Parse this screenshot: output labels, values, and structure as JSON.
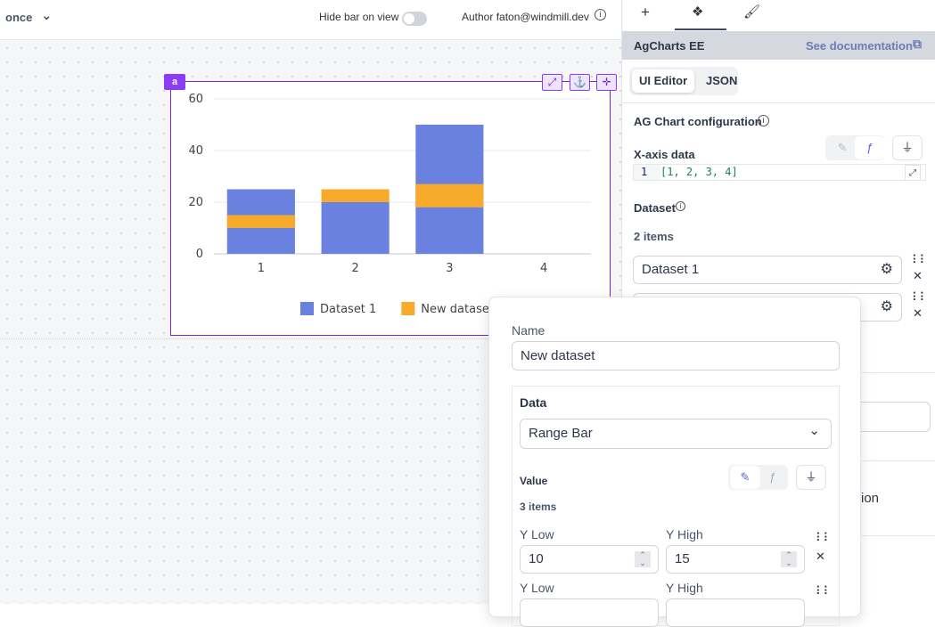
{
  "topbar": {
    "mode": "once",
    "hide_bar_label": "Hide bar on view",
    "hide_bar_on": false,
    "author": "Author faton@windmill.dev"
  },
  "component": {
    "id": "a"
  },
  "chart_data": {
    "type": "bar",
    "categories": [
      "1",
      "2",
      "3",
      "4"
    ],
    "yticks": [
      "0",
      "20",
      "40",
      "60"
    ],
    "ylim": [
      0,
      60
    ],
    "grid": true,
    "legend": "bottom",
    "series": [
      {
        "name": "Dataset 1",
        "color": "#6b81e0",
        "ranges": [
          [
            0,
            25
          ],
          [
            0,
            20
          ],
          [
            0,
            50
          ],
          null
        ]
      },
      {
        "name": "New dataset",
        "color": "#f8aa2b",
        "ranges": [
          [
            10,
            15
          ],
          [
            20,
            25
          ],
          [
            18,
            27
          ],
          null
        ]
      }
    ]
  },
  "panel": {
    "tabs": [
      "+",
      "components-icon",
      "style-icon"
    ],
    "title": "AgCharts EE",
    "doc_link": "See documentation",
    "editor_tabs": [
      "UI Editor",
      "JSON"
    ],
    "config_label": "AG Chart configuration",
    "xaxis_label": "X-axis data",
    "xaxis_line": "1",
    "xaxis_code": "[1, 2, 3, 4]",
    "dataset_label": "Dataset",
    "dataset_count": "2 items",
    "datasets": [
      "Dataset 1",
      ""
    ],
    "partial_text": "ion"
  },
  "popup": {
    "name_label": "Name",
    "name_value": "New dataset",
    "data_label": "Data",
    "data_type": "Range Bar",
    "value_label": "Value",
    "value_count": "3 items",
    "rows": [
      {
        "low_label": "Y Low",
        "high_label": "Y High",
        "low": "10",
        "high": "15"
      },
      {
        "low_label": "Y Low",
        "high_label": "Y High",
        "low": "",
        "high": ""
      }
    ]
  }
}
